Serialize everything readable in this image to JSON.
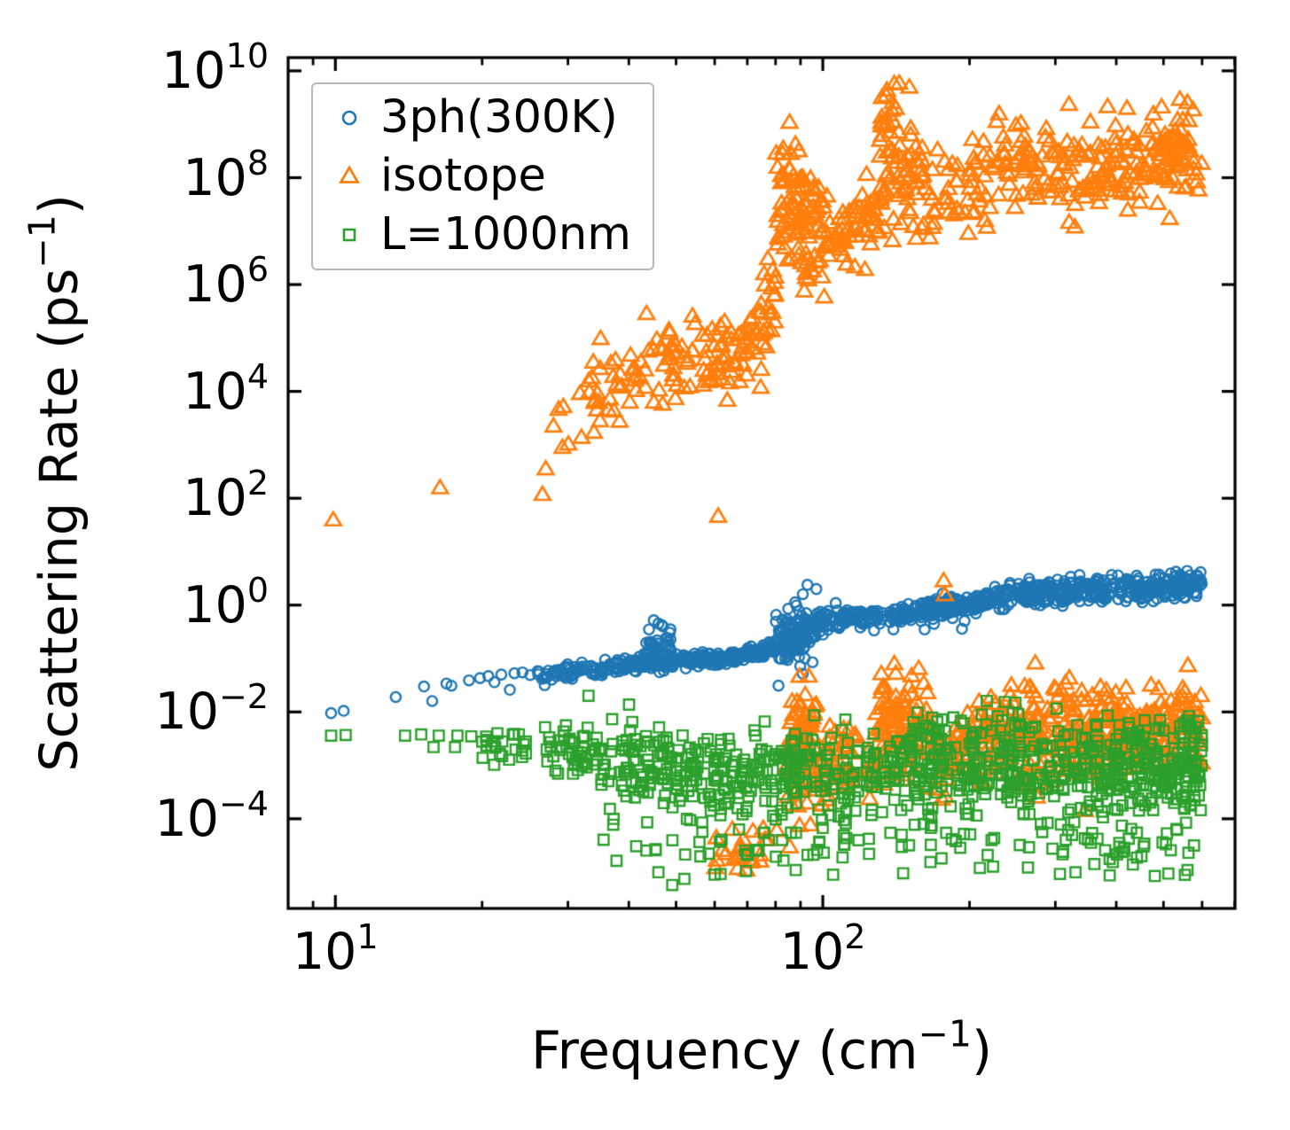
{
  "chart_data": {
    "type": "scatter",
    "title": "",
    "xlabel": "Frequency (cm⁻¹)",
    "ylabel": "Scattering Rate (ps⁻¹)",
    "xlabel_parts": {
      "pre": "Frequency (cm",
      "sup": "−1",
      "post": ")"
    },
    "ylabel_parts": {
      "pre": "Scattering Rate (ps",
      "sup": "−1",
      "post": ")"
    },
    "x_scale": "log",
    "y_scale": "log",
    "xlim": [
      8.0,
      701
    ],
    "ylim": [
      2.1e-06,
      17700000000.0
    ],
    "grid": false,
    "legend_position": "upper left",
    "x_ticks": [
      {
        "base": "10",
        "exp": "1",
        "value": 10
      },
      {
        "base": "10",
        "exp": "2",
        "value": 100
      }
    ],
    "x_minor_ticks": [
      9,
      20,
      30,
      40,
      50,
      60,
      70,
      80,
      90,
      200,
      300,
      400,
      500,
      600,
      700
    ],
    "y_ticks": [
      {
        "base": "10",
        "exp": "10",
        "value": 10000000000.0
      },
      {
        "base": "10",
        "exp": "8",
        "value": 100000000.0
      },
      {
        "base": "10",
        "exp": "6",
        "value": 1000000.0
      },
      {
        "base": "10",
        "exp": "4",
        "value": 10000.0
      },
      {
        "base": "10",
        "exp": "2",
        "value": 100
      },
      {
        "base": "10",
        "exp": "0",
        "value": 1
      },
      {
        "base": "10",
        "exp": "−2",
        "value": 0.01
      },
      {
        "base": "10",
        "exp": "−4",
        "value": 0.0001
      }
    ],
    "seed": 7,
    "series": [
      {
        "name": "3ph(300K)",
        "marker": "circle",
        "color": "#1f77b4",
        "points": [
          [
            9.8,
            0.0095
          ],
          [
            10.4,
            0.0105
          ],
          [
            13.3,
            0.019
          ],
          [
            15.2,
            0.03
          ],
          [
            15.8,
            0.016
          ],
          [
            16.9,
            0.034
          ],
          [
            17.3,
            0.031
          ],
          [
            18.8,
            0.039
          ],
          [
            19.8,
            0.043
          ],
          [
            20.6,
            0.047
          ],
          [
            21.2,
            0.036
          ],
          [
            21.9,
            0.05
          ],
          [
            22.8,
            0.026
          ],
          [
            23.3,
            0.053
          ],
          [
            24.2,
            0.055
          ],
          [
            25.1,
            0.049
          ],
          [
            26,
            0.058
          ],
          [
            44,
            0.35
          ],
          [
            45,
            0.52
          ],
          [
            46,
            0.45
          ],
          [
            47,
            0.4
          ],
          [
            91,
            1.6
          ],
          [
            93,
            2.4
          ],
          [
            97,
            2.0
          ],
          [
            193,
            0.36
          ]
        ],
        "bands": [
          {
            "f": [
              26,
              33
            ],
            "logv": [
              -1.32,
              -1.22
            ],
            "spread": 0.06,
            "n": 50
          },
          {
            "f": [
              33,
              42
            ],
            "logv": [
              -1.22,
              -1.08
            ],
            "spread": 0.07,
            "n": 70
          },
          {
            "f": [
              42,
              52
            ],
            "logv": [
              -1.08,
              -1.02
            ],
            "spread": 0.07,
            "n": 70
          },
          {
            "f": [
              43,
              49
            ],
            "logv": [
              -0.95,
              -0.8
            ],
            "spread": 0.2,
            "n": 45
          },
          {
            "f": [
              52,
              64
            ],
            "logv": [
              -1.03,
              -0.98
            ],
            "spread": 0.06,
            "n": 80
          },
          {
            "f": [
              64,
              80
            ],
            "logv": [
              -0.98,
              -0.8
            ],
            "spread": 0.07,
            "n": 90
          },
          {
            "f": [
              80,
              97
            ],
            "logv": [
              -0.6,
              -0.52
            ],
            "spread": 0.26,
            "n": 110
          },
          {
            "f": [
              97,
              133
            ],
            "logv": [
              -0.3,
              -0.2
            ],
            "spread": 0.09,
            "n": 110
          },
          {
            "f": [
              137,
              182
            ],
            "logv": [
              -0.22,
              -0.05
            ],
            "spread": 0.1,
            "n": 100
          },
          {
            "f": [
              182,
              240
            ],
            "logv": [
              -0.02,
              0.18
            ],
            "spread": 0.1,
            "n": 110
          },
          {
            "f": [
              240,
              300
            ],
            "logv": [
              0.18,
              0.28
            ],
            "spread": 0.13,
            "n": 90
          },
          {
            "f": [
              300,
              420
            ],
            "logv": [
              0.22,
              0.32
            ],
            "spread": 0.12,
            "n": 120
          },
          {
            "f": [
              420,
              600
            ],
            "logv": [
              0.3,
              0.4
            ],
            "spread": 0.13,
            "n": 150
          }
        ]
      },
      {
        "name": "isotope",
        "marker": "triangle",
        "color": "#ff7f0e",
        "points": [
          [
            9.9,
            40
          ],
          [
            16.4,
            160
          ],
          [
            26.6,
            120
          ],
          [
            61,
            47
          ],
          [
            177,
            2.9
          ],
          [
            178,
            1.6
          ],
          [
            135,
            3500000000.0
          ],
          [
            139,
            2600000000.0
          ],
          [
            230,
            1600000000.0
          ],
          [
            320,
            2400000000.0
          ],
          [
            540,
            3000000000.0
          ],
          [
            560,
            2600000000.0
          ],
          [
            575,
            1900000000.0
          ]
        ],
        "bands": [
          {
            "f": [
              27,
              33
            ],
            "logv": [
              3.3,
              3.7
            ],
            "spread": 0.35,
            "n": 8
          },
          {
            "f": [
              33,
              46
            ],
            "logv": [
              4.0,
              4.45
            ],
            "spread": 0.42,
            "n": 40
          },
          {
            "f": [
              46,
              60
            ],
            "logv": [
              4.45,
              4.65
            ],
            "spread": 0.4,
            "n": 42
          },
          {
            "f": [
              60,
              76
            ],
            "logv": [
              4.7,
              5.0
            ],
            "spread": 0.42,
            "n": 48
          },
          {
            "f": [
              74,
              80
            ],
            "logv": [
              5.3,
              5.9
            ],
            "spread": 0.45,
            "n": 20
          },
          {
            "f": [
              80,
              91
            ],
            "logv": [
              7.2,
              7.6
            ],
            "spread": 0.72,
            "n": 60
          },
          {
            "f": [
              91,
              103
            ],
            "logv": [
              7.0,
              7.1
            ],
            "spread": 0.55,
            "n": 45
          },
          {
            "f": [
              103,
              131
            ],
            "logv": [
              7.0,
              7.2
            ],
            "spread": 0.48,
            "n": 55
          },
          {
            "f": [
              131,
              144
            ],
            "logv": [
              8.5,
              8.6
            ],
            "spread": 0.62,
            "n": 42
          },
          {
            "f": [
              144,
              163
            ],
            "logv": [
              7.9,
              8.0
            ],
            "spread": 0.66,
            "n": 36
          },
          {
            "f": [
              163,
              200
            ],
            "logv": [
              7.6,
              7.8
            ],
            "spread": 0.45,
            "n": 26
          },
          {
            "f": [
              200,
              290
            ],
            "logv": [
              8.1,
              8.35
            ],
            "spread": 0.42,
            "n": 70
          },
          {
            "f": [
              290,
              440
            ],
            "logv": [
              8.1,
              8.3
            ],
            "spread": 0.4,
            "n": 85
          },
          {
            "f": [
              440,
              600
            ],
            "logv": [
              8.3,
              8.4
            ],
            "spread": 0.38,
            "n": 85
          },
          {
            "f": [
              60,
              84
            ],
            "logv": [
              -4.7,
              -4.5
            ],
            "spread": 0.22,
            "n": 26
          },
          {
            "f": [
              84,
              97
            ],
            "logv": [
              -2.75,
              -2.55
            ],
            "spread": 0.62,
            "n": 85
          },
          {
            "f": [
              97,
              128
            ],
            "logv": [
              -3.2,
              -3.0
            ],
            "spread": 0.38,
            "n": 60
          },
          {
            "f": [
              128,
              143
            ],
            "logv": [
              -2.3,
              -2.2
            ],
            "spread": 0.5,
            "n": 55
          },
          {
            "f": [
              143,
              166
            ],
            "logv": [
              -2.45,
              -2.35
            ],
            "spread": 0.5,
            "n": 50
          },
          {
            "f": [
              166,
              206
            ],
            "logv": [
              -2.9,
              -2.7
            ],
            "spread": 0.4,
            "n": 55
          },
          {
            "f": [
              206,
              262
            ],
            "logv": [
              -2.55,
              -2.45
            ],
            "spread": 0.45,
            "n": 75
          },
          {
            "f": [
              262,
              340
            ],
            "logv": [
              -2.45,
              -2.35
            ],
            "spread": 0.45,
            "n": 100
          },
          {
            "f": [
              340,
              600
            ],
            "logv": [
              -2.4,
              -2.3
            ],
            "spread": 0.42,
            "n": 210
          }
        ]
      },
      {
        "name": "L=1000nm",
        "marker": "square",
        "color": "#2ca02c",
        "points": [
          [
            9.8,
            0.0036
          ],
          [
            10.5,
            0.0037
          ],
          [
            13.9,
            0.0036
          ],
          [
            15,
            0.0038
          ],
          [
            15.9,
            0.0022
          ],
          [
            16.3,
            0.0036
          ],
          [
            17.6,
            0.0022
          ],
          [
            17.8,
            0.0036
          ],
          [
            19,
            0.0035
          ],
          [
            21.5,
            0.004
          ],
          [
            22,
            0.0028
          ],
          [
            46,
            1e-05
          ],
          [
            52,
            7.5e-06
          ],
          [
            60,
            9e-06
          ],
          [
            88,
            1.1e-05
          ],
          [
            105,
            9e-06
          ],
          [
            210,
            1.2e-05
          ],
          [
            330,
            1e-05
          ],
          [
            480,
            8.5e-06
          ],
          [
            560,
            1.1e-05
          ]
        ],
        "bands": [
          {
            "f": [
              20,
              27
            ],
            "logv": [
              -2.55,
              -2.6
            ],
            "spread": 0.22,
            "n": 22
          },
          {
            "f": [
              27,
              34
            ],
            "logv": [
              -2.6,
              -2.75
            ],
            "spread": 0.3,
            "n": 40
          },
          {
            "f": [
              34,
              44
            ],
            "logv": [
              -2.8,
              -2.95
            ],
            "spread": 0.35,
            "n": 55
          },
          {
            "f": [
              34,
              46
            ],
            "logv": [
              -3.9,
              -3.9
            ],
            "spread": 0.45,
            "n": 12
          },
          {
            "f": [
              44,
              58
            ],
            "logv": [
              -3.0,
              -3.1
            ],
            "spread": 0.35,
            "n": 65
          },
          {
            "f": [
              44,
              60
            ],
            "logv": [
              -4.3,
              -4.3
            ],
            "spread": 0.35,
            "n": 14
          },
          {
            "f": [
              58,
              80
            ],
            "logv": [
              -3.15,
              -3.2
            ],
            "spread": 0.38,
            "n": 85
          },
          {
            "f": [
              60,
              85
            ],
            "logv": [
              -4.5,
              -4.4
            ],
            "spread": 0.3,
            "n": 16
          },
          {
            "f": [
              80,
              130
            ],
            "logv": [
              -3.2,
              -3.2
            ],
            "spread": 0.4,
            "n": 120
          },
          {
            "f": [
              85,
              135
            ],
            "logv": [
              -4.5,
              -4.4
            ],
            "spread": 0.3,
            "n": 20
          },
          {
            "f": [
              130,
              200
            ],
            "logv": [
              -3.1,
              -3.1
            ],
            "spread": 0.4,
            "n": 110
          },
          {
            "f": [
              150,
              290
            ],
            "logv": [
              -2.35,
              -2.3
            ],
            "spread": 0.22,
            "n": 38
          },
          {
            "f": [
              135,
              210
            ],
            "logv": [
              -4.5,
              -4.4
            ],
            "spread": 0.3,
            "n": 18
          },
          {
            "f": [
              200,
              320
            ],
            "logv": [
              -3.1,
              -3.05
            ],
            "spread": 0.4,
            "n": 120
          },
          {
            "f": [
              210,
              330
            ],
            "logv": [
              -4.5,
              -4.45
            ],
            "spread": 0.28,
            "n": 20
          },
          {
            "f": [
              320,
              600
            ],
            "logv": [
              -3.05,
              -3.0
            ],
            "spread": 0.4,
            "n": 230
          },
          {
            "f": [
              330,
              600
            ],
            "logv": [
              -4.5,
              -4.4
            ],
            "spread": 0.3,
            "n": 40
          },
          {
            "f": [
              300,
              600
            ],
            "logv": [
              -2.4,
              -2.35
            ],
            "spread": 0.18,
            "n": 30
          }
        ]
      }
    ]
  }
}
